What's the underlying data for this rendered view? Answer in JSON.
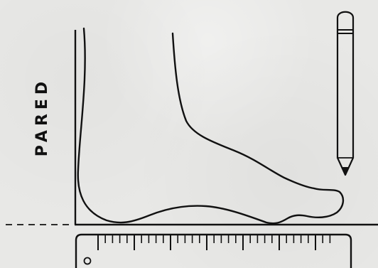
{
  "diagram": {
    "wall_label": "PARED",
    "icons": {
      "foot": "foot-outline-icon",
      "pencil": "pencil-icon",
      "ruler": "ruler-icon"
    },
    "colors": {
      "background": "#e8e8e6",
      "ink": "#111111"
    }
  }
}
